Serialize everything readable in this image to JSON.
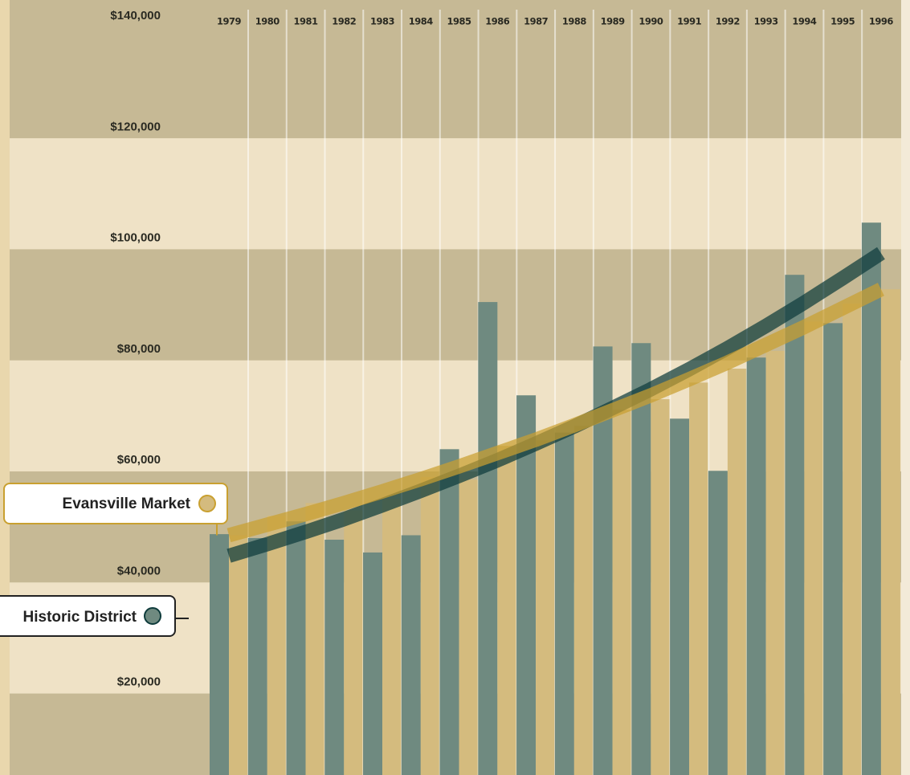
{
  "chart_data": {
    "type": "bar",
    "categories": [
      "1979",
      "1980",
      "1981",
      "1982",
      "1983",
      "1984",
      "1985",
      "1986",
      "1987",
      "1988",
      "1989",
      "1990",
      "1991",
      "1992",
      "1993",
      "1994",
      "1995",
      "1996"
    ],
    "series": [
      {
        "name": "Historic District",
        "color": "#6f8a80",
        "trend_color": "#0e3b3b",
        "values": [
          46700,
          46000,
          49000,
          45700,
          43400,
          46500,
          62000,
          88500,
          71700,
          65000,
          80500,
          81100,
          67500,
          58100,
          78500,
          93400,
          84700,
          102800
        ],
        "trend": [
          42800,
          44900,
          47100,
          49400,
          51900,
          54500,
          57200,
          60000,
          63000,
          66100,
          69400,
          72800,
          76400,
          80200,
          84200,
          88400,
          92800,
          97300
        ]
      },
      {
        "name": "Evansville Market",
        "color": "#d4bb7e",
        "trend_color": "#c9a030",
        "values": [
          46500,
          50000,
          52300,
          51000,
          53000,
          57000,
          56500,
          62600,
          63600,
          66200,
          69100,
          71000,
          74000,
          76500,
          79700,
          85000,
          88200,
          90800
        ],
        "trend": [
          46500,
          48400,
          50300,
          52300,
          54400,
          56600,
          58900,
          61300,
          63700,
          66300,
          69000,
          71700,
          74600,
          77600,
          80800,
          84000,
          87400,
          90800
        ]
      }
    ],
    "ylim": [
      0,
      140000
    ],
    "yticks": [
      {
        "value": 20000,
        "label": "$20,000"
      },
      {
        "value": 40000,
        "label": "$40,000"
      },
      {
        "value": 60000,
        "label": "$60,000"
      },
      {
        "value": 80000,
        "label": "$80,000"
      },
      {
        "value": 100000,
        "label": "$100,000"
      },
      {
        "value": 120000,
        "label": "$120,000"
      },
      {
        "value": 140000,
        "label": "$140,000"
      }
    ]
  }
}
